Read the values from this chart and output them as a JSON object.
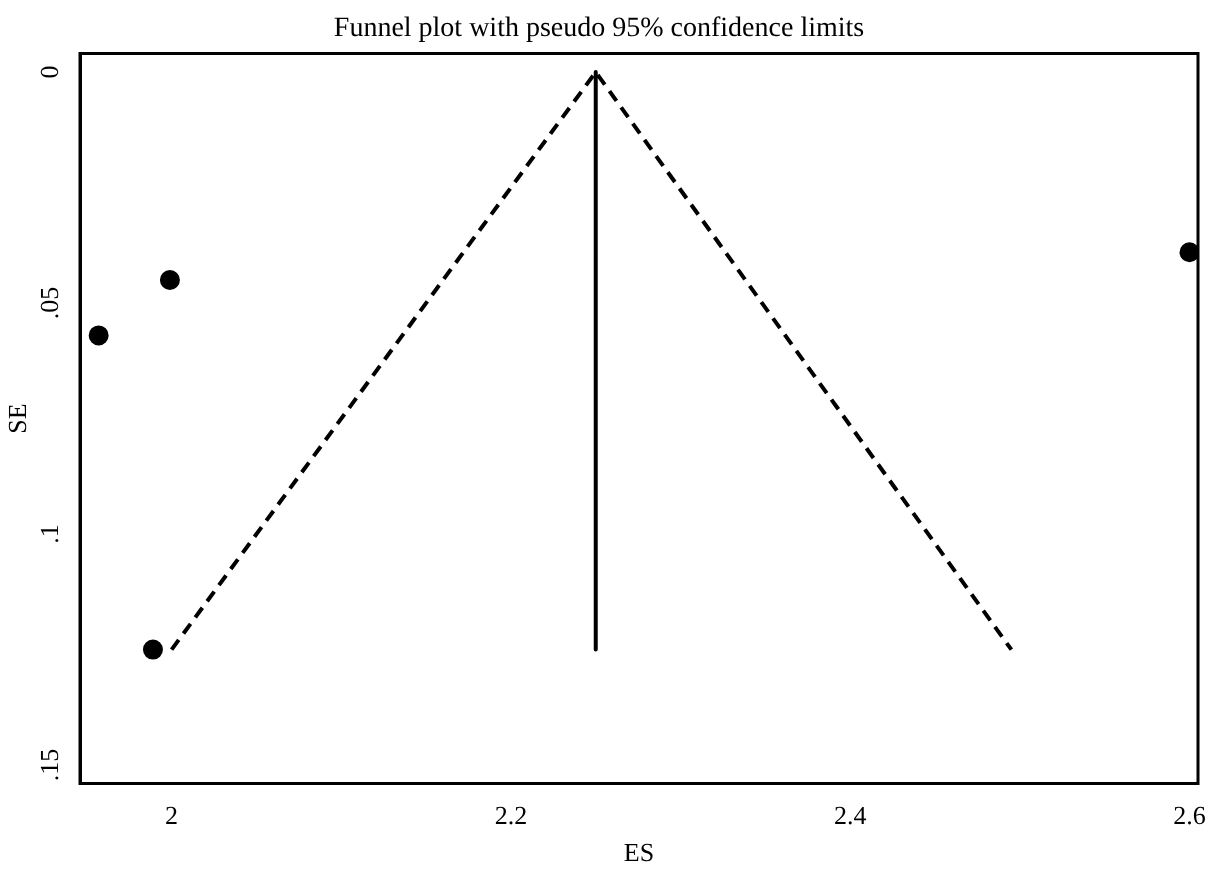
{
  "chart_data": {
    "type": "scatter",
    "title": "Funnel plot with pseudo 95% confidence limits",
    "xlabel": "ES",
    "ylabel": "SE",
    "series": [
      {
        "color": "#000000",
        "x": [
          1.957,
          1.999,
          1.989,
          2.6
        ],
        "values": [
          0.057,
          0.045,
          0.125,
          0.039
        ],
        "marker": "circle"
      },
      {
        "type": "line",
        "color": "#000000",
        "x": [
          2.25,
          2.25
        ],
        "values": [
          0,
          0.125
        ],
        "line_style": "solid",
        "marker": "none"
      },
      {
        "type": "line",
        "color": "#000000",
        "x": [
          2.0,
          2.25,
          2.495
        ],
        "values": [
          0.125,
          0,
          0.125
        ],
        "line_style": "dashed",
        "marker": "none"
      }
    ],
    "xlim": [
      1.946,
      2.605
    ],
    "xticks": [
      2,
      2.2,
      2.4,
      2.6
    ],
    "ylim": [
      0.154,
      -0.004
    ],
    "yticks": [
      {
        "value": 0,
        "label": "0"
      },
      {
        "value": 0.05,
        "label": ".05"
      },
      {
        "value": 0.1,
        "label": ".1"
      },
      {
        "value": 0.15,
        "label": ".15"
      }
    ],
    "grid": false,
    "legend": false
  }
}
